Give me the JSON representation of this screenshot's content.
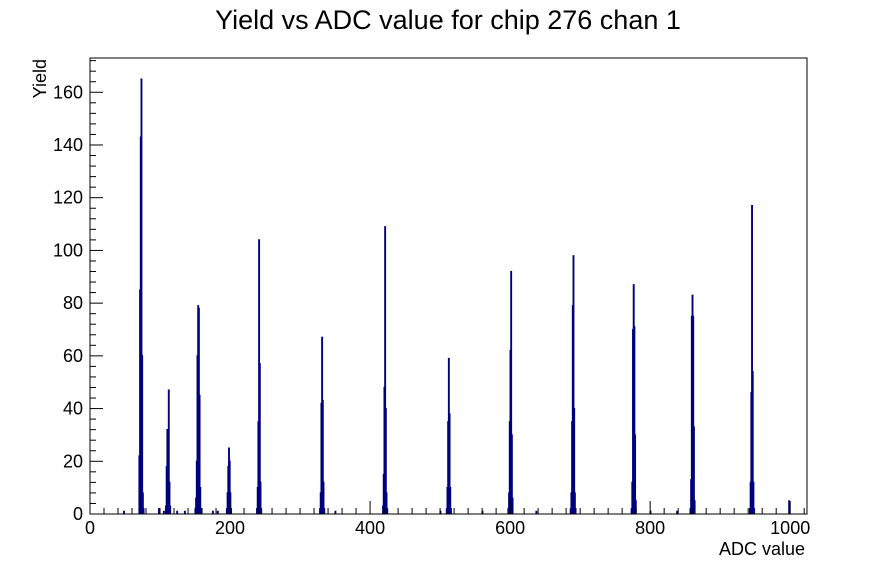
{
  "chart_data": {
    "type": "bar",
    "title": "Yield vs ADC value for chip 276 chan 1",
    "xlabel": "ADC value",
    "ylabel": "Yield",
    "xlim": [
      0,
      1024
    ],
    "ylim": [
      0,
      173
    ],
    "x_ticks": [
      0,
      200,
      400,
      600,
      800,
      1000
    ],
    "y_ticks": [
      0,
      20,
      40,
      60,
      80,
      100,
      120,
      140,
      160
    ],
    "grid": false,
    "legend": "none",
    "line_color": "#00007f",
    "bin_width": 1,
    "series": [
      {
        "bins": [
          [
            48,
            1
          ],
          [
            70,
            22
          ],
          [
            71,
            85
          ],
          [
            72,
            143
          ],
          [
            73,
            165
          ],
          [
            74,
            60
          ],
          [
            75,
            8
          ],
          [
            76,
            2
          ],
          [
            98,
            2
          ],
          [
            105,
            1
          ],
          [
            108,
            3
          ],
          [
            109,
            18
          ],
          [
            110,
            32
          ],
          [
            111,
            24
          ],
          [
            112,
            47
          ],
          [
            113,
            12
          ],
          [
            114,
            3
          ],
          [
            124,
            1
          ],
          [
            135,
            1
          ],
          [
            150,
            2
          ],
          [
            151,
            6
          ],
          [
            152,
            20
          ],
          [
            153,
            60
          ],
          [
            154,
            79
          ],
          [
            155,
            78
          ],
          [
            156,
            45
          ],
          [
            157,
            10
          ],
          [
            158,
            2
          ],
          [
            175,
            1
          ],
          [
            182,
            1
          ],
          [
            195,
            2
          ],
          [
            196,
            8
          ],
          [
            197,
            18
          ],
          [
            198,
            25
          ],
          [
            199,
            20
          ],
          [
            200,
            8
          ],
          [
            201,
            2
          ],
          [
            238,
            2
          ],
          [
            239,
            10
          ],
          [
            240,
            35
          ],
          [
            241,
            104
          ],
          [
            242,
            57
          ],
          [
            243,
            12
          ],
          [
            244,
            2
          ],
          [
            328,
            2
          ],
          [
            329,
            8
          ],
          [
            330,
            42
          ],
          [
            331,
            67
          ],
          [
            332,
            43
          ],
          [
            333,
            12
          ],
          [
            334,
            2
          ],
          [
            350,
            1
          ],
          [
            418,
            3
          ],
          [
            419,
            15
          ],
          [
            420,
            48
          ],
          [
            421,
            109
          ],
          [
            422,
            40
          ],
          [
            423,
            8
          ],
          [
            424,
            2
          ],
          [
            500,
            1
          ],
          [
            509,
            2
          ],
          [
            510,
            10
          ],
          [
            511,
            35
          ],
          [
            512,
            59
          ],
          [
            513,
            38
          ],
          [
            514,
            10
          ],
          [
            515,
            2
          ],
          [
            560,
            1
          ],
          [
            597,
            2
          ],
          [
            598,
            8
          ],
          [
            599,
            35
          ],
          [
            600,
            62
          ],
          [
            601,
            92
          ],
          [
            602,
            30
          ],
          [
            603,
            6
          ],
          [
            637,
            1
          ],
          [
            686,
            2
          ],
          [
            687,
            8
          ],
          [
            688,
            35
          ],
          [
            689,
            79
          ],
          [
            690,
            98
          ],
          [
            691,
            40
          ],
          [
            692,
            8
          ],
          [
            693,
            2
          ],
          [
            773,
            2
          ],
          [
            774,
            12
          ],
          [
            775,
            70
          ],
          [
            776,
            87
          ],
          [
            777,
            71
          ],
          [
            778,
            30
          ],
          [
            779,
            5
          ],
          [
            800,
            1
          ],
          [
            838,
            1
          ],
          [
            857,
            2
          ],
          [
            858,
            13
          ],
          [
            859,
            75
          ],
          [
            860,
            83
          ],
          [
            861,
            75
          ],
          [
            862,
            33
          ],
          [
            863,
            5
          ],
          [
            942,
            2
          ],
          [
            943,
            12
          ],
          [
            944,
            46
          ],
          [
            945,
            117
          ],
          [
            946,
            54
          ],
          [
            947,
            12
          ],
          [
            948,
            2
          ],
          [
            998,
            5
          ]
        ]
      }
    ]
  }
}
